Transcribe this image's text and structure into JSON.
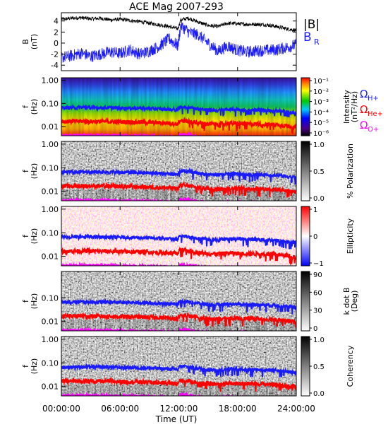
{
  "title": "ACE Mag 2007-293",
  "colors": {
    "black_trace": "#000000",
    "blue_trace": "#1a1aff",
    "h_line": "#1a1aff",
    "he_line": "#ff0000",
    "o_line": "#ff00ff"
  },
  "chart_data": [
    {
      "type": "line",
      "panel": "B",
      "ylabel_line1": "B",
      "ylabel_line2": "(nT)",
      "ylim": [
        -5,
        5.5
      ],
      "yticks": [
        4,
        2,
        0,
        -2,
        -4
      ],
      "legend": [
        {
          "label": "|B|",
          "color": "#000000"
        },
        {
          "label": "B",
          "sub": "R",
          "color": "#1a1aff"
        }
      ],
      "series": [
        {
          "name": "|B|",
          "color": "#000000",
          "x": [
            0,
            1,
            2,
            3,
            4,
            5,
            6,
            7,
            8,
            9,
            10,
            11,
            11.9,
            12.2,
            13,
            14,
            15,
            16,
            17,
            18,
            19,
            20,
            21,
            22,
            23,
            24
          ],
          "y": [
            4.3,
            4.5,
            4.6,
            4.4,
            4.5,
            4.2,
            4.3,
            4.1,
            3.9,
            3.6,
            3.3,
            3.0,
            2.6,
            4.2,
            4.5,
            3.8,
            3.2,
            3.0,
            3.6,
            3.5,
            3.4,
            3.4,
            3.3,
            3.0,
            2.6,
            2.3
          ]
        },
        {
          "name": "B",
          "sub": "R",
          "color": "#1a1aff",
          "x": [
            0,
            1,
            2,
            3,
            4,
            5,
            6,
            7,
            8,
            9,
            10,
            11,
            11.9,
            12.2,
            13,
            14,
            15,
            16,
            17,
            18,
            19,
            20,
            21,
            22,
            23,
            24
          ],
          "y": [
            -2.6,
            -2.3,
            -1.8,
            -2.4,
            -2.0,
            -1.6,
            -1.9,
            -1.2,
            -2.0,
            -1.4,
            -0.6,
            0.8,
            -0.5,
            3.2,
            2.0,
            1.5,
            0.0,
            -1.5,
            -0.5,
            -1.3,
            -1.6,
            -1.4,
            -1.3,
            -1.2,
            -0.8,
            -0.3
          ]
        }
      ]
    },
    {
      "type": "heatmap",
      "panel": "Intensity",
      "ylabel_line1": "f",
      "ylabel_line2": "(Hz)",
      "yticks": [
        "1.00",
        "0.10",
        "0.01"
      ],
      "colorbar": {
        "labels": [
          "10⁻¹",
          "10⁻²",
          "10⁻³",
          "10⁻⁴",
          "10⁻⁵",
          "10⁻⁶"
        ],
        "title_line1": "Intensity",
        "title_line2": "(nT²/Hz)"
      },
      "legend": [
        {
          "label": "Ω",
          "sub": "H+",
          "color": "#1a1aff"
        },
        {
          "label": "Ω",
          "sub": "He+",
          "color": "#ff0000"
        },
        {
          "label": "Ω",
          "sub": "O+",
          "color": "#ff00ff"
        }
      ]
    },
    {
      "type": "heatmap",
      "panel": "Polarization",
      "ylabel_line1": "f",
      "ylabel_line2": "(Hz)",
      "yticks": [
        "1.00",
        "0.10",
        "0.01"
      ],
      "colorbar": {
        "labels": [
          "1.0",
          "0.5",
          "0.0"
        ],
        "title_line1": "% Polarization",
        "title_line2": ""
      }
    },
    {
      "type": "heatmap",
      "panel": "Ellipticity",
      "ylabel_line1": "f",
      "ylabel_line2": "(Hz)",
      "yticks": [
        "1.00",
        "0.10",
        "0.01"
      ],
      "colorbar": {
        "labels": [
          "1",
          "0",
          "−1"
        ],
        "title_line1": "Ellipticity",
        "title_line2": ""
      }
    },
    {
      "type": "heatmap",
      "panel": "k dot B",
      "ylabel_line1": "f",
      "ylabel_line2": "(Hz)",
      "yticks": [
        "0.10",
        "0.01"
      ],
      "colorbar": {
        "labels": [
          "90",
          "60",
          "30",
          "0"
        ],
        "title_line1": "k dot B",
        "title_line2": "(Deg)"
      }
    },
    {
      "type": "heatmap",
      "panel": "Coherency",
      "ylabel_line1": "f",
      "ylabel_line2": "(Hz)",
      "yticks": [
        "1.00",
        "0.10",
        "0.01"
      ],
      "colorbar": {
        "labels": [
          "1.0",
          "0.5",
          "0.0"
        ],
        "title_line1": "Coherency",
        "title_line2": ""
      }
    }
  ],
  "gyro_lines": {
    "x": [
      0,
      2,
      4,
      6,
      8,
      10,
      11,
      11.9,
      12.1,
      13,
      14,
      15,
      16,
      17,
      18,
      19,
      20,
      21,
      22,
      23,
      24
    ],
    "H+": [
      0.065,
      0.067,
      0.066,
      0.064,
      0.062,
      0.058,
      0.055,
      0.052,
      0.072,
      0.068,
      0.058,
      0.052,
      0.05,
      0.055,
      0.054,
      0.052,
      0.052,
      0.05,
      0.048,
      0.043,
      0.038
    ],
    "He+": [
      0.0165,
      0.017,
      0.0165,
      0.016,
      0.0155,
      0.0145,
      0.014,
      0.013,
      0.018,
      0.017,
      0.0145,
      0.013,
      0.0125,
      0.0138,
      0.0135,
      0.013,
      0.013,
      0.0125,
      0.012,
      0.0108,
      0.0095
    ],
    "O+": [
      0.0041,
      0.0042,
      0.0041,
      0.004,
      0.0039,
      0.0037,
      0.0035,
      0.0033,
      0.0045,
      0.0043,
      0.0037,
      0.0033,
      0.0032,
      0.0035,
      0.0034,
      0.0033,
      0.0033,
      0.0032,
      0.003,
      0.0027,
      0.0024
    ]
  },
  "x_axis": {
    "ticks": [
      "00:00:00",
      "06:00:00",
      "12:00:00",
      "18:00:00",
      "24:00:00"
    ],
    "tick_hours": [
      0,
      6,
      12,
      18,
      24
    ],
    "label": "Time (UT)"
  }
}
